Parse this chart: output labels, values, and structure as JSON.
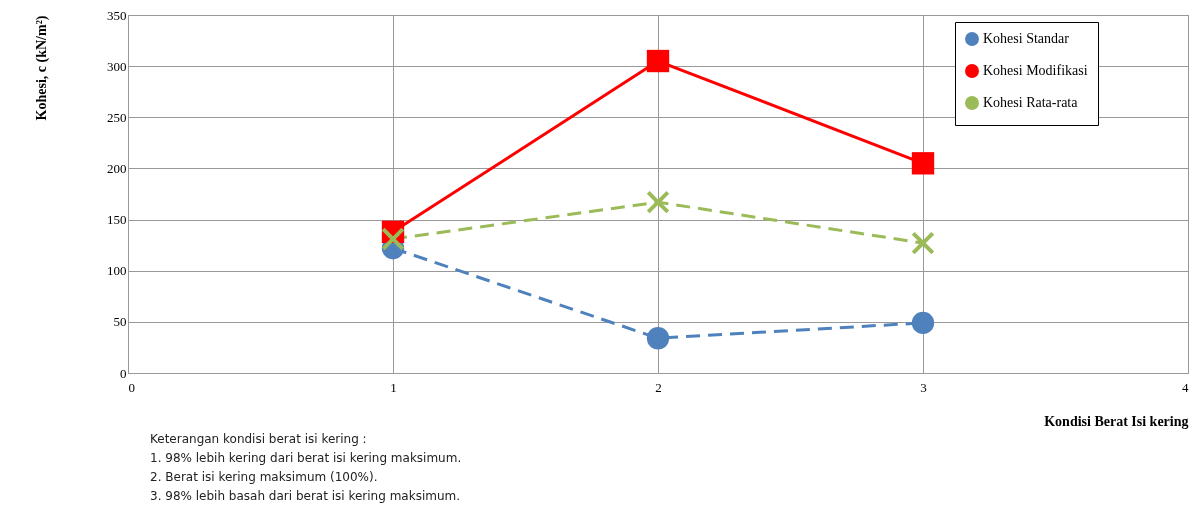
{
  "chart_data": {
    "type": "line",
    "xlabel": "Kondisi  Berat Isi kering",
    "ylabel": "Kohesi, c (kN/m²)",
    "x": [
      1,
      2,
      3
    ],
    "series": [
      {
        "name": "Kohesi Standar",
        "color": "#4f81bd",
        "values": [
          122,
          34,
          49
        ],
        "marker": "circle",
        "line_style": "dashed"
      },
      {
        "name": "Kohesi Modifikasi",
        "color": "#ff0000",
        "values": [
          138,
          305,
          205
        ],
        "marker": "square",
        "line_style": "solid"
      },
      {
        "name": "Kohesi Rata-rata",
        "color": "#9bbb59",
        "values": [
          131,
          167,
          127
        ],
        "marker": "cross",
        "line_style": "dashed"
      }
    ],
    "xlim": [
      0,
      4
    ],
    "xticks": [
      0,
      1,
      2,
      3,
      4
    ],
    "ylim": [
      0,
      350
    ],
    "yticks": [
      0,
      50,
      100,
      150,
      200,
      250,
      300,
      350
    ],
    "grid": true,
    "legend": "top right",
    "annotations": [
      "Keterangan kondisi berat isi kering :",
      "1. 98% lebih kering dari berat isi kering maksimum.",
      "2. Berat  isi kering maksimum (100%).",
      "3. 98% lebih basah dari berat isi kering maksimum."
    ]
  }
}
